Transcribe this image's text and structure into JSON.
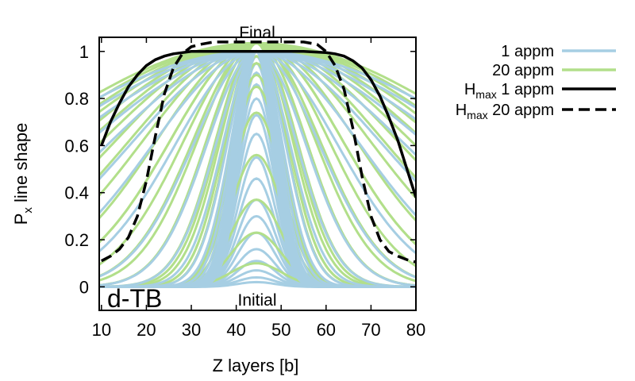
{
  "chart_data": {
    "type": "line",
    "title": "",
    "xlabel": "Z layers [b]",
    "ylabel_main": "P",
    "ylabel_sub": "x",
    "ylabel_rest": " line shape",
    "xlim": [
      9.5,
      80
    ],
    "ylim": [
      -0.1,
      1.06
    ],
    "xticks": [
      10,
      20,
      30,
      40,
      50,
      60,
      70,
      80
    ],
    "yticks": [
      0,
      0.2,
      0.4,
      0.6,
      0.8,
      1
    ],
    "ytick_labels": [
      "0",
      "0.2",
      "0.4",
      "0.6",
      "0.8",
      "1"
    ],
    "grid": false,
    "legend_position": "outside-right",
    "annotations": {
      "top": "Final",
      "bottom": "Initial",
      "panel": "d-TB"
    },
    "series": [
      {
        "name": "1 appm",
        "kind": "family",
        "color": "#a6cee3",
        "center": 44.5,
        "peak_heights": [
          0.02,
          0.04,
          0.07,
          0.11,
          0.16,
          0.23,
          0.3,
          0.37,
          0.46,
          0.55,
          0.65,
          0.73,
          0.8,
          0.86,
          0.91,
          0.95,
          0.98,
          1.0,
          1.0
        ],
        "half_widths": [
          3.6,
          3.6,
          3.7,
          3.8,
          3.9,
          4.0,
          4.1,
          4.2,
          4.4,
          4.6,
          4.9,
          5.3,
          5.8,
          6.5,
          7.5,
          9,
          11,
          14,
          18,
          23,
          28,
          33,
          38,
          43,
          48,
          53
        ]
      },
      {
        "name": "20 appm",
        "kind": "family",
        "color": "#b2df8a",
        "center": 44.5,
        "peak_heights": [
          0.1,
          0.23,
          0.37,
          0.56,
          0.74,
          0.85,
          0.9,
          0.95,
          0.98,
          1.0
        ],
        "half_widths": [
          19,
          14,
          11,
          8.5,
          7,
          6.5,
          6.5,
          7,
          8,
          9,
          11,
          13,
          16,
          19,
          22,
          25,
          28,
          31,
          34,
          37,
          40,
          43,
          46,
          49,
          52
        ]
      },
      {
        "name": "H",
        "name_sub": "max",
        "name_rest": " 1 appm",
        "kind": "line",
        "color": "#000000",
        "dash": false,
        "x": [
          10,
          12,
          14,
          16,
          18,
          20,
          22,
          24,
          26,
          28,
          30,
          35,
          40,
          45,
          50,
          55,
          60,
          62,
          64,
          66,
          68,
          70,
          72,
          74,
          76,
          78,
          80
        ],
        "y": [
          0.6,
          0.7,
          0.78,
          0.85,
          0.9,
          0.94,
          0.965,
          0.98,
          0.99,
          0.995,
          1.0,
          1.0,
          1.0,
          1.0,
          1.0,
          1.0,
          0.995,
          0.99,
          0.98,
          0.96,
          0.93,
          0.88,
          0.81,
          0.72,
          0.62,
          0.5,
          0.38
        ]
      },
      {
        "name": "H",
        "name_sub": "max",
        "name_rest": " 20 appm",
        "kind": "line",
        "color": "#000000",
        "dash": true,
        "x": [
          10,
          12,
          14,
          16,
          18,
          20,
          22,
          24,
          26,
          28,
          30,
          32,
          35,
          40,
          45,
          50,
          55,
          58,
          60,
          62,
          64,
          66,
          68,
          70,
          72,
          74,
          76,
          78,
          80
        ],
        "y": [
          0.11,
          0.13,
          0.16,
          0.21,
          0.3,
          0.45,
          0.64,
          0.82,
          0.93,
          0.99,
          1.02,
          1.03,
          1.04,
          1.04,
          1.04,
          1.04,
          1.04,
          1.03,
          1.0,
          0.94,
          0.84,
          0.67,
          0.47,
          0.3,
          0.2,
          0.15,
          0.13,
          0.115,
          0.105
        ]
      }
    ]
  }
}
